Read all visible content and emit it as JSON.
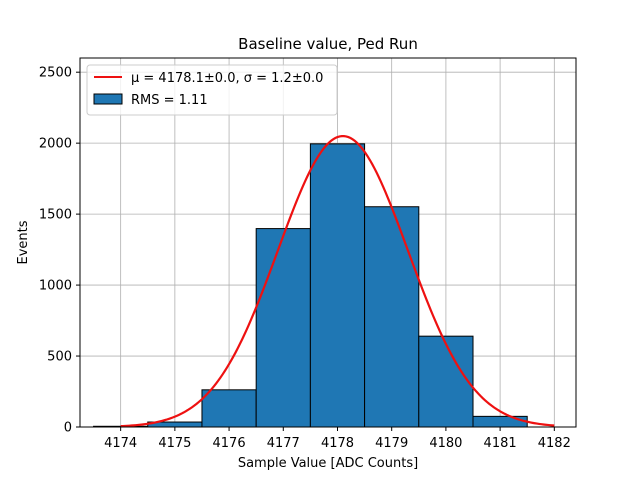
{
  "chart_data": {
    "type": "bar",
    "title": "Baseline value, Ped Run",
    "xlabel": "Sample Value [ADC Counts]",
    "ylabel": "Events",
    "xlim": [
      4173.25,
      4182.4
    ],
    "ylim": [
      0,
      2600
    ],
    "xticks": [
      4174,
      4175,
      4176,
      4177,
      4178,
      4179,
      4180,
      4181,
      4182
    ],
    "yticks": [
      0,
      500,
      1000,
      1500,
      2000,
      2500
    ],
    "grid": true,
    "legend_position": "top-left",
    "histogram": {
      "bin_edges": [
        4173.5,
        4174.5,
        4175.5,
        4176.5,
        4177.5,
        4178.5,
        4179.5,
        4180.5,
        4181.5
      ],
      "counts": [
        5,
        35,
        262,
        1398,
        1995,
        1552,
        640,
        75
      ],
      "color": "#1f77b4",
      "edgecolor": "#000000",
      "legend_label": "RMS = 1.11"
    },
    "fit": {
      "mu": 4178.1,
      "sigma": 1.2,
      "peak": 2050,
      "x_range": [
        4174.0,
        4182.0
      ],
      "color": "#ee1111",
      "legend_label": "μ = 4178.1±0.0, σ = 1.2±0.0"
    }
  }
}
